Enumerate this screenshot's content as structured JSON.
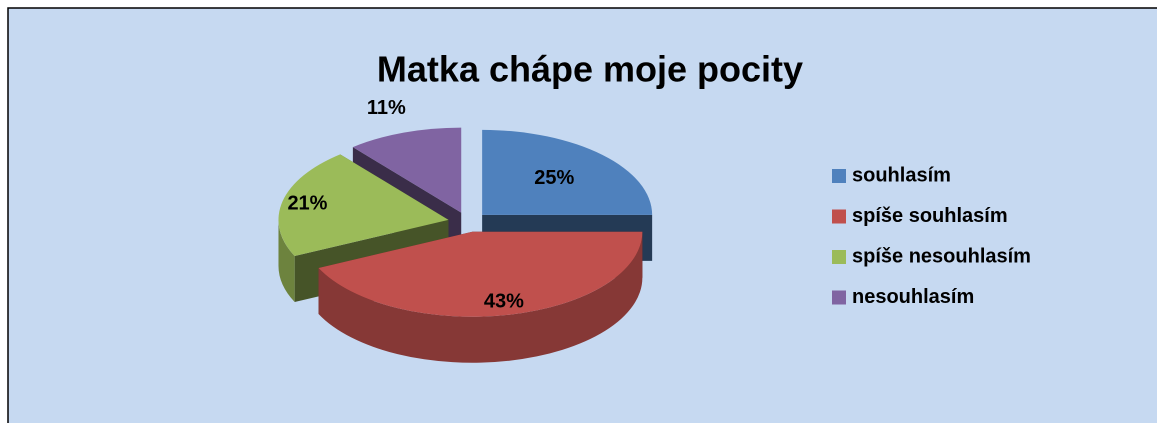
{
  "chart_data": {
    "type": "pie",
    "title": "Matka chápe moje pocity",
    "categories": [
      "souhlasím",
      "spíše souhlasím",
      "spíše nesouhlasím",
      "nesouhlasím"
    ],
    "values": [
      25,
      43,
      21,
      11
    ],
    "value_labels": [
      "25%",
      "43%",
      "21%",
      "11%"
    ],
    "colors": [
      "#4f81bd",
      "#c0504d",
      "#9bbb59",
      "#8064a2"
    ],
    "legend": "right"
  }
}
